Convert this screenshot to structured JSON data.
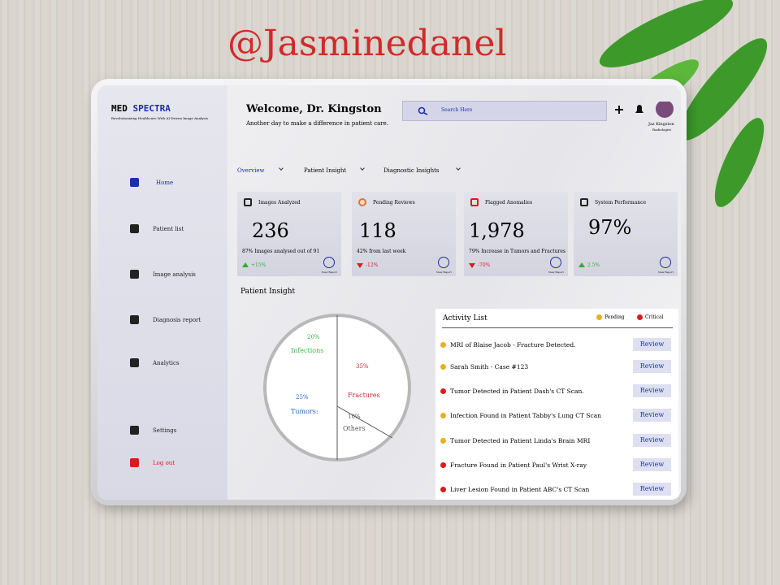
{
  "watermark": "@Jasminedanel",
  "brand": {
    "name_a": "MED",
    "name_b": "SPECTRA",
    "tagline": "Revolutionizing Healthcare With AI-Driven Image Analysis"
  },
  "nav": [
    "Home",
    "Patient list",
    "Image analysis",
    "Diagnosis report",
    "Analytics"
  ],
  "footer_nav": [
    "Settings",
    "Log out"
  ],
  "header": {
    "title": "Welcome, Dr. Kingston",
    "subtitle": "Another day to make a difference in patient care.",
    "search": "Search Here",
    "user_name": "Jaz Kingston",
    "user_role": "Radiologist"
  },
  "tabs": [
    "Overview",
    "Patient Insight",
    "Diagnostic Insights"
  ],
  "cards": [
    {
      "title": "Images Analyzed",
      "value": "236",
      "note": "87% Images analysed out of 91",
      "change": "+15%",
      "up": true
    },
    {
      "title": "Pending Reviews",
      "value": "118",
      "note": "42% from last week",
      "change": "-12%",
      "up": false
    },
    {
      "title": "Flagged Anomalies",
      "value": "1,978",
      "note": "79% Increase in Tumors and Fractures",
      "change": "-70%",
      "up": false
    },
    {
      "title": "System Performance",
      "value": "97%",
      "note": "",
      "change": "2.5%",
      "up": true
    }
  ],
  "card_link": "View Report",
  "patient_insight": {
    "title": "Patient Insight",
    "slices": [
      {
        "label": "Infections",
        "value": "20%",
        "color": "#3cb43c"
      },
      {
        "label": "Fractures",
        "value": "35%",
        "color": "#c8232c"
      },
      {
        "label": "Tumors:",
        "value": "25%",
        "color": "#2a62b8"
      },
      {
        "label": "Others",
        "value": "10%",
        "color": "#555555"
      }
    ]
  },
  "activity": {
    "title": "Activity List",
    "legend": [
      {
        "label": "Pending",
        "color": "#e8b020"
      },
      {
        "label": "Critical",
        "color": "#d81c1c"
      }
    ],
    "action": "Review",
    "items": [
      {
        "text": "MRI of  Blaise Jacob - Fracture Detected.",
        "color": "#e8b020"
      },
      {
        "text": "Sarah Smith - Case #123",
        "color": "#e8b020"
      },
      {
        "text": "Tumor Detected in Patient Dash's CT Scan.",
        "color": "#d81c1c"
      },
      {
        "text": "Infection Found in Patient Tabby's Lung CT Scan",
        "color": "#e8b020"
      },
      {
        "text": "Tumor Detected in Patient Linda's Brain MRI",
        "color": "#e8b020"
      },
      {
        "text": "Fracture Found in Patient Paul's Wrist X-ray",
        "color": "#d81c1c"
      },
      {
        "text": "Liver Lesion Found in Patient ABC's CT Scan",
        "color": "#d81c1c"
      }
    ]
  }
}
